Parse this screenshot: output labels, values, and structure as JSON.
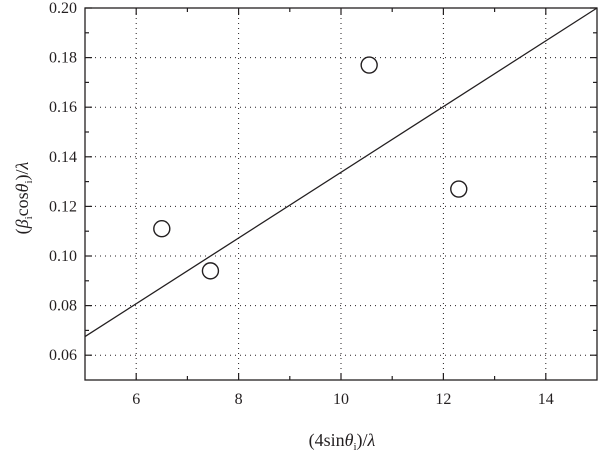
{
  "chart_data": {
    "type": "scatter",
    "xlim": [
      5,
      15
    ],
    "ylim": [
      0.05,
      0.2
    ],
    "xticks": [
      6,
      8,
      10,
      12,
      14
    ],
    "yticks": [
      0.06,
      0.08,
      0.1,
      0.12,
      0.14,
      0.16,
      0.18,
      0.2
    ],
    "xtick_labels": [
      "6",
      "8",
      "10",
      "12",
      "14"
    ],
    "ytick_labels": [
      "0.06",
      "0.08",
      "0.10",
      "0.12",
      "0.14",
      "0.16",
      "0.18",
      "0.20"
    ],
    "grid": true,
    "xlabel": {
      "prefix": "(4sin",
      "theta": "θ",
      "sub": "i",
      "suffix": ")/",
      "lambda": "λ"
    },
    "ylabel": {
      "open": "(",
      "beta": "β",
      "sub1": "i",
      "cos": "cos",
      "theta": "θ",
      "sub2": "i",
      "suffix": ")/",
      "lambda": "λ"
    },
    "points": [
      {
        "x": 6.5,
        "y": 0.111
      },
      {
        "x": 7.45,
        "y": 0.094
      },
      {
        "x": 10.55,
        "y": 0.177
      },
      {
        "x": 12.3,
        "y": 0.127
      }
    ],
    "fit_line": {
      "x": [
        5,
        15
      ],
      "y": [
        0.0675,
        0.2
      ]
    },
    "colors": {
      "ink": "#231f20",
      "marker_fill": "#ffffff"
    }
  }
}
